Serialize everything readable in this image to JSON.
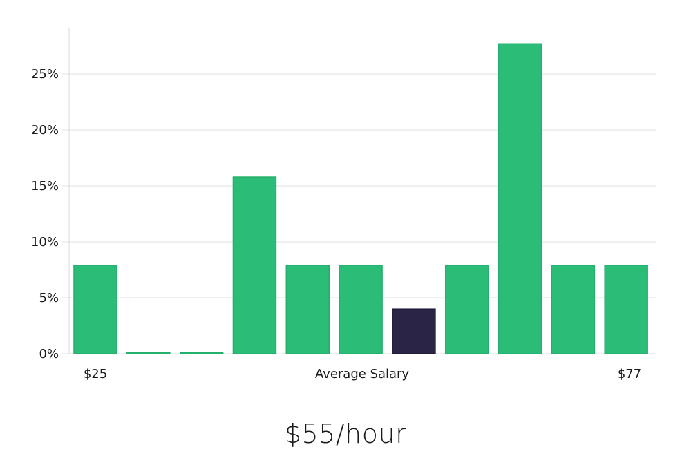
{
  "chart_data": {
    "type": "bar",
    "values": [
      7.9,
      0,
      0,
      15.8,
      7.9,
      7.9,
      4.0,
      7.9,
      27.7,
      7.9,
      7.9
    ],
    "highlight_index": 6,
    "ylim": [
      0,
      29
    ],
    "yticks": [
      "0%",
      "5%",
      "10%",
      "15%",
      "20%",
      "25%"
    ],
    "ytick_values": [
      0,
      5,
      10,
      15,
      20,
      25
    ],
    "x_start_label": "$25",
    "x_center_label": "Average Salary",
    "x_end_label": "$77",
    "grid": true,
    "colors": {
      "bar": "#2bbd78",
      "bar_edge": "#22b06c",
      "highlight": "#2a2547",
      "grid": "#e0e0e0",
      "axis": "#d8d8d8"
    }
  },
  "footer": {
    "salary": "$55/hour"
  }
}
